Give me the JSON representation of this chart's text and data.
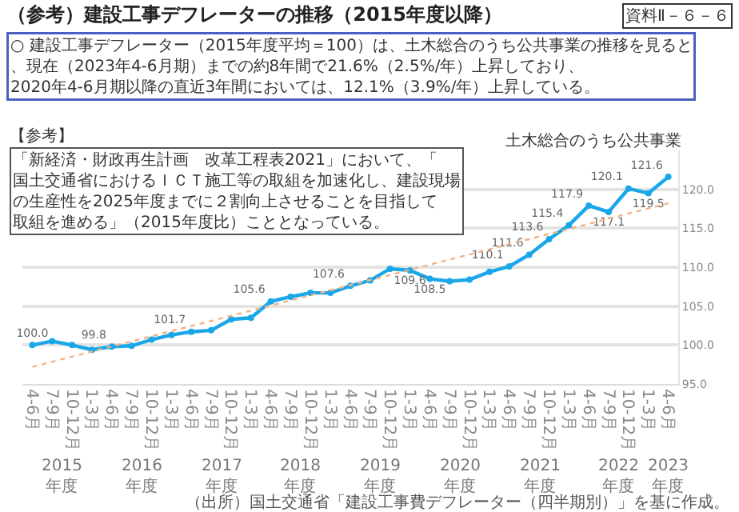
{
  "chart_data": {
    "type": "line",
    "title": "（参考）建設工事デフレーターの推移（2015年度以降）",
    "subtitle": "○ 建設工事デフレーター（2015年度平均＝100）は、土木総合のうち公共事業の推移を見ると、現在（2023年4-6月期）までの約8年間で21.6%（2.5%/年）上昇しており、2020年4-6月期以降の直近3年間においては、12.1%（3.9%/年）上昇している。",
    "annotations": [
      "資料Ⅱ－６－６",
      "【参考】",
      "「新経済・財政再生計画　改革工程表2021」において、「国土交通省におけるＩＣＴ施工等の取組を加速化し、建設現場の生産性を2025年度までに２割向上させることを目指して取組を進める」（2015年度比）こととなっている。",
      "2015年度",
      "2016年度",
      "2017年度",
      "2018年度",
      "2019年度",
      "2020年度",
      "2021年度",
      "2022年度",
      "2023年度",
      "（出所）国土交通省「建設工事費デフレーター（四半期別）」を基に作成。"
    ],
    "categories": [
      "4-6月",
      "7-9月",
      "10-12月",
      "1-3月",
      "4-6月",
      "7-9月",
      "10-12月",
      "1-3月",
      "4-6月",
      "7-9月",
      "10-12月",
      "1-3月",
      "4-6月",
      "7-9月",
      "10-12月",
      "1-3月",
      "4-6月",
      "7-9月",
      "10-12月",
      "1-3月",
      "4-6月",
      "7-9月",
      "10-12月",
      "1-3月",
      "4-6月",
      "7-9月",
      "10-12月",
      "1-3月",
      "4-6月",
      "7-9月",
      "10-12月",
      "1-3月",
      "4-6月"
    ],
    "series": [
      {
        "name": "土木総合のうち公共事業",
        "color": "#1aa7e8",
        "marker": "circle",
        "line_style": "solid",
        "values": [
          100.0,
          100.5,
          100.0,
          99.4,
          99.8,
          99.9,
          100.7,
          101.3,
          101.7,
          101.9,
          103.3,
          103.5,
          105.6,
          106.2,
          106.7,
          106.7,
          107.6,
          108.3,
          109.8,
          109.6,
          108.5,
          108.2,
          108.4,
          109.4,
          110.1,
          111.6,
          113.6,
          115.4,
          117.9,
          117.1,
          120.1,
          119.5,
          121.6
        ],
        "value_labels": [
          "100.0",
          null,
          null,
          null,
          "99.8",
          null,
          null,
          null,
          "101.7",
          null,
          null,
          null,
          "105.6",
          null,
          null,
          null,
          "107.6",
          null,
          null,
          "109.6",
          "108.5",
          null,
          null,
          null,
          "110.1",
          "111.6",
          "113.6",
          "115.4",
          "117.9",
          "117.1",
          "120.1",
          "119.5",
          "121.6"
        ]
      },
      {
        "type": "line",
        "color": "#f4b183",
        "marker": "none",
        "line_style": "dotted",
        "values": [
          97.2,
          null,
          null,
          null,
          null,
          null,
          null,
          null,
          null,
          null,
          null,
          null,
          null,
          null,
          null,
          null,
          null,
          null,
          null,
          null,
          null,
          null,
          null,
          null,
          null,
          null,
          null,
          null,
          null,
          null,
          null,
          null,
          118.2
        ]
      }
    ],
    "ylim": [
      95,
      125
    ],
    "yticks": [
      {
        "value": 95,
        "label": "95.0"
      },
      {
        "value": 100,
        "label": "100.0"
      },
      {
        "value": 105,
        "label": "105.0"
      },
      {
        "value": 110,
        "label": "110.0"
      },
      {
        "value": 115,
        "label": "115.0"
      },
      {
        "value": 120,
        "label": "120.0"
      }
    ],
    "grid": "y",
    "legend": false
  }
}
